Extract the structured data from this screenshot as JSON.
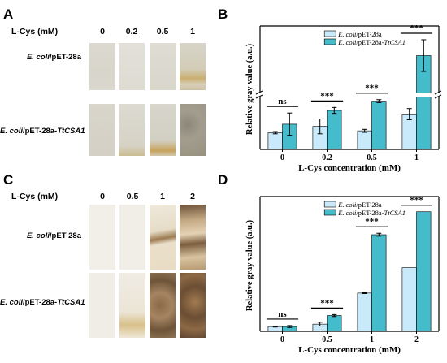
{
  "panels": {
    "A": {
      "letter": "A",
      "lcys_label": "L-Cys (mM)",
      "concentrations": [
        "0",
        "0.2",
        "0.5",
        "1"
      ],
      "row1": {
        "strain": "E. coli",
        "suffix": "/pET-28a"
      },
      "row2": {
        "strain": "E. coli",
        "suffix": "/pET-28a-",
        "gene": "TtCSA1"
      }
    },
    "C": {
      "letter": "C",
      "lcys_label": "L-Cys (mM)",
      "concentrations": [
        "0",
        "0.5",
        "1",
        "2"
      ],
      "row1": {
        "strain": "E. coli",
        "suffix": "/pET-28a"
      },
      "row2": {
        "strain": "E. coli",
        "suffix": "/pET-28a-",
        "gene": "TtCSA1"
      }
    },
    "B": {
      "letter": "B"
    },
    "D": {
      "letter": "D"
    }
  },
  "colors": {
    "control_bar": "#c9eafa",
    "ttcsa1_bar": "#45bccb",
    "axis": "#000000"
  },
  "chart_data": [
    {
      "id": "B",
      "type": "bar",
      "categories": [
        "0",
        "0.2",
        "0.5",
        "1"
      ],
      "series": [
        {
          "name": "E. coli/pET-28a",
          "values": [
            0.45,
            0.62,
            0.5,
            0.95
          ],
          "errors": [
            0.03,
            0.2,
            0.04,
            0.15
          ]
        },
        {
          "name": "E. coli/pET-28a-TtCSA1",
          "values": [
            0.68,
            1.05,
            1.3,
            4.0
          ],
          "errors": [
            0.3,
            0.08,
            0.04,
            0.6
          ]
        }
      ],
      "significance": [
        "ns",
        "***",
        "***",
        "***"
      ],
      "axis_break": true,
      "xlabel": "L-Cys concentration (mM)",
      "ylabel": "Relative gray value (a.u.)",
      "legend_position": "top-right",
      "grid": false
    },
    {
      "id": "D",
      "type": "bar",
      "categories": [
        "0",
        "0.5",
        "1",
        "2"
      ],
      "series": [
        {
          "name": "E. coli/pET-28a",
          "values": [
            0.1,
            0.15,
            0.8,
            1.33
          ],
          "errors": [
            0.01,
            0.04,
            0.01,
            0.0
          ]
        },
        {
          "name": "E. coli/pET-28a-TtCSA1",
          "values": [
            0.1,
            0.33,
            2.02,
            2.5
          ],
          "errors": [
            0.02,
            0.02,
            0.03,
            0.0
          ]
        }
      ],
      "significance": [
        "ns",
        "***",
        "***",
        "***"
      ],
      "axis_break": false,
      "xlabel": "L-Cys concentration (mM)",
      "ylabel": "Relative gray value (a.u.)",
      "legend_position": "top-right",
      "grid": false
    }
  ]
}
